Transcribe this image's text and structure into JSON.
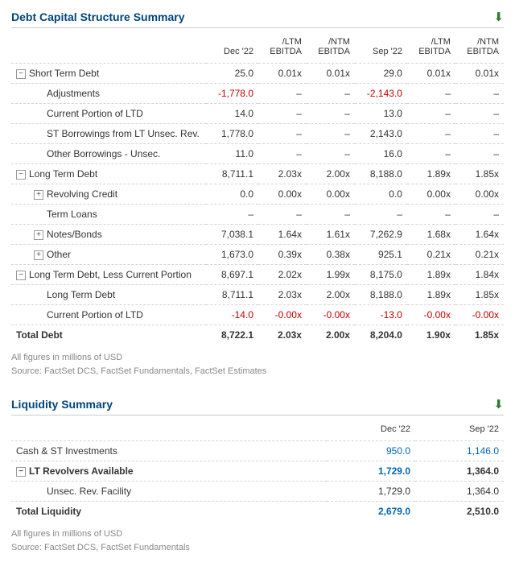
{
  "debt": {
    "title": "Debt Capital Structure Summary",
    "cols": [
      "",
      "Dec '22",
      "/LTM\nEBITDA",
      "/NTM\nEBITDA",
      "Sep '22",
      "/LTM\nEBITDA",
      "/NTM\nEBITDA"
    ],
    "rows": [
      {
        "ic": "−",
        "lbl": "Short Term Debt",
        "v": [
          "25.0",
          "0.01x",
          "0.01x",
          "29.0",
          "0.01x",
          "0.01x"
        ]
      },
      {
        "ind": 2,
        "lbl": "Adjustments",
        "v": [
          "-1,778.0",
          "–",
          "–",
          "-2,143.0",
          "–",
          "–"
        ],
        "neg": [
          1,
          4
        ]
      },
      {
        "ind": 2,
        "lbl": "Current Portion of LTD",
        "v": [
          "14.0",
          "–",
          "–",
          "13.0",
          "–",
          "–"
        ]
      },
      {
        "ind": 2,
        "lbl": "ST Borrowings from LT Unsec. Rev.",
        "v": [
          "1,778.0",
          "–",
          "–",
          "2,143.0",
          "–",
          "–"
        ]
      },
      {
        "ind": 2,
        "lbl": "Other Borrowings - Unsec.",
        "v": [
          "11.0",
          "–",
          "–",
          "16.0",
          "–",
          "–"
        ]
      },
      {
        "ic": "−",
        "lbl": "Long Term Debt",
        "v": [
          "8,711.1",
          "2.03x",
          "2.00x",
          "8,188.0",
          "1.89x",
          "1.85x"
        ]
      },
      {
        "ind": 1,
        "ic": "+",
        "lbl": "Revolving Credit",
        "v": [
          "0.0",
          "0.00x",
          "0.00x",
          "0.0",
          "0.00x",
          "0.00x"
        ]
      },
      {
        "ind": 2,
        "lbl": "Term Loans",
        "v": [
          "–",
          "–",
          "–",
          "–",
          "–",
          "–"
        ]
      },
      {
        "ind": 1,
        "ic": "+",
        "lbl": "Notes/Bonds",
        "v": [
          "7,038.1",
          "1.64x",
          "1.61x",
          "7,262.9",
          "1.68x",
          "1.64x"
        ]
      },
      {
        "ind": 1,
        "ic": "+",
        "lbl": "Other",
        "v": [
          "1,673.0",
          "0.39x",
          "0.38x",
          "925.1",
          "0.21x",
          "0.21x"
        ]
      },
      {
        "ic": "−",
        "lbl": "Long Term Debt, Less Current Portion",
        "v": [
          "8,697.1",
          "2.02x",
          "1.99x",
          "8,175.0",
          "1.89x",
          "1.84x"
        ]
      },
      {
        "ind": 2,
        "lbl": "Long Term Debt",
        "v": [
          "8,711.1",
          "2.03x",
          "2.00x",
          "8,188.0",
          "1.89x",
          "1.85x"
        ]
      },
      {
        "ind": 2,
        "lbl": "Current Portion of LTD",
        "v": [
          "-14.0",
          "-0.00x",
          "-0.00x",
          "-13.0",
          "-0.00x",
          "-0.00x"
        ],
        "neg": [
          1,
          2,
          3,
          4,
          5,
          6
        ]
      },
      {
        "bold": 1,
        "lbl": "Total Debt",
        "v": [
          "8,722.1",
          "2.03x",
          "2.00x",
          "8,204.0",
          "1.90x",
          "1.85x"
        ]
      }
    ],
    "note": "All figures in millions of USD\nSource: FactSet DCS, FactSet Fundamentals, FactSet Estimates"
  },
  "liq": {
    "title": "Liquidity Summary",
    "cols": [
      "",
      "Dec '22",
      "Sep '22"
    ],
    "rows": [
      {
        "lbl": "Cash & ST Investments",
        "v": [
          "950.0",
          "1,146.0"
        ],
        "blue": [
          1,
          2
        ]
      },
      {
        "ic": "−",
        "bold": 1,
        "lbl": "LT Revolvers Available",
        "v": [
          "1,729.0",
          "1,364.0"
        ],
        "blue": [
          1
        ]
      },
      {
        "ind": 2,
        "lbl": "Unsec. Rev. Facility",
        "v": [
          "1,729.0",
          "1,364.0"
        ]
      },
      {
        "bold": 1,
        "lbl": "Total Liquidity",
        "v": [
          "2,679.0",
          "2,510.0"
        ],
        "blue": [
          1
        ]
      }
    ],
    "note": "All figures in millions of USD\nSource: FactSet DCS, FactSet Fundamentals"
  }
}
